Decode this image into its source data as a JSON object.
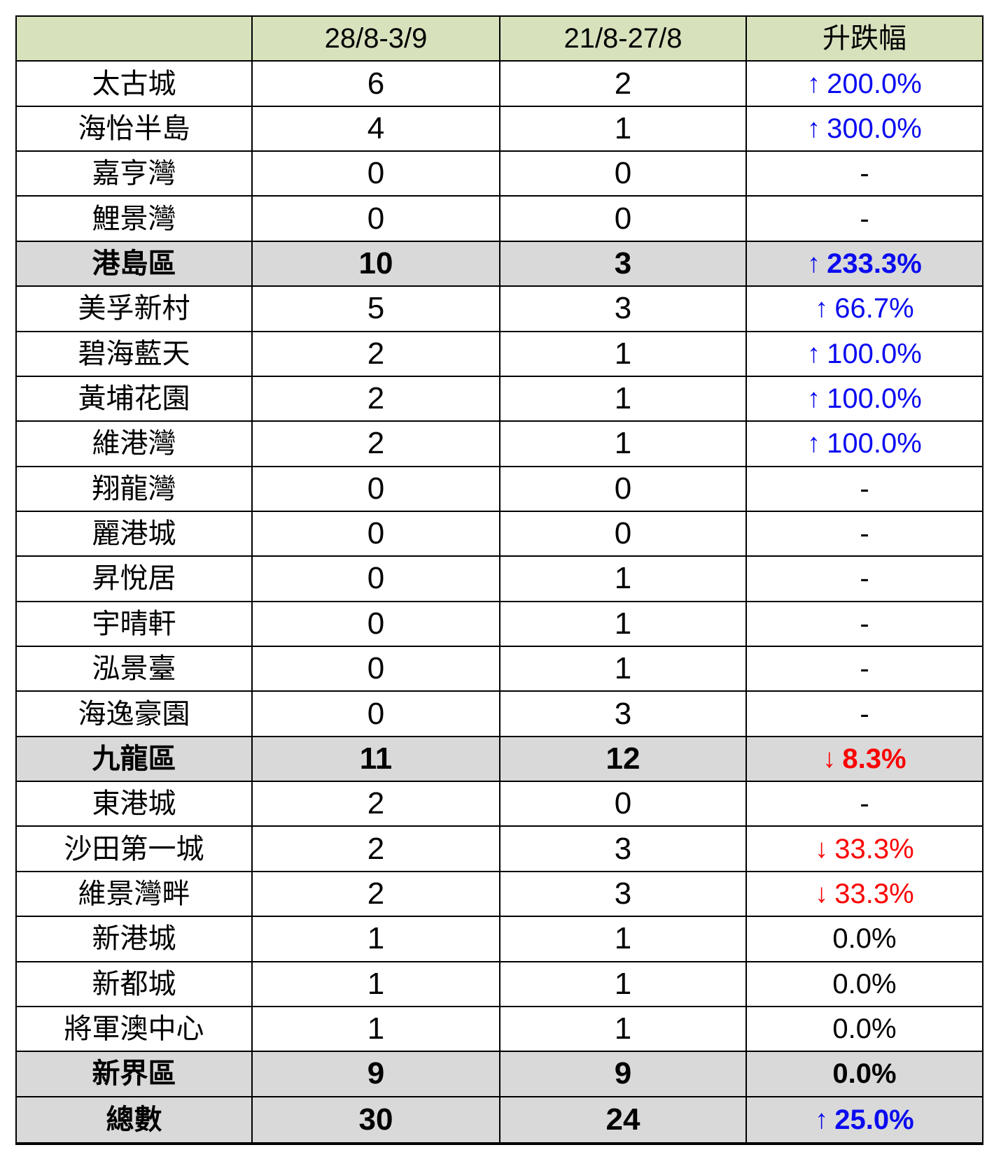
{
  "chart_data": {
    "type": "table",
    "columns": [
      "",
      "28/8-3/9",
      "21/8-27/8",
      "升跌幅"
    ],
    "rows": [
      {
        "name": "太古城",
        "count_28_8_to_3_9": 6,
        "count_21_8_to_27_8": 2,
        "change_arrow": "↑",
        "change_value": "200.0%",
        "direction": "up",
        "is_summary": false
      },
      {
        "name": "海怡半島",
        "count_28_8_to_3_9": 4,
        "count_21_8_to_27_8": 1,
        "change_arrow": "↑",
        "change_value": "300.0%",
        "direction": "up",
        "is_summary": false
      },
      {
        "name": "嘉亨灣",
        "count_28_8_to_3_9": 0,
        "count_21_8_to_27_8": 0,
        "change_arrow": "",
        "change_value": "-",
        "direction": "flat",
        "is_summary": false
      },
      {
        "name": "鯉景灣",
        "count_28_8_to_3_9": 0,
        "count_21_8_to_27_8": 0,
        "change_arrow": "",
        "change_value": "-",
        "direction": "flat",
        "is_summary": false
      },
      {
        "name": "港島區",
        "count_28_8_to_3_9": 10,
        "count_21_8_to_27_8": 3,
        "change_arrow": "↑",
        "change_value": "233.3%",
        "direction": "up",
        "is_summary": true
      },
      {
        "name": "美孚新村",
        "count_28_8_to_3_9": 5,
        "count_21_8_to_27_8": 3,
        "change_arrow": "↑",
        "change_value": "66.7%",
        "direction": "up",
        "is_summary": false
      },
      {
        "name": "碧海藍天",
        "count_28_8_to_3_9": 2,
        "count_21_8_to_27_8": 1,
        "change_arrow": "↑",
        "change_value": "100.0%",
        "direction": "up",
        "is_summary": false
      },
      {
        "name": "黃埔花園",
        "count_28_8_to_3_9": 2,
        "count_21_8_to_27_8": 1,
        "change_arrow": "↑",
        "change_value": "100.0%",
        "direction": "up",
        "is_summary": false
      },
      {
        "name": "維港灣",
        "count_28_8_to_3_9": 2,
        "count_21_8_to_27_8": 1,
        "change_arrow": "↑",
        "change_value": "100.0%",
        "direction": "up",
        "is_summary": false
      },
      {
        "name": "翔龍灣",
        "count_28_8_to_3_9": 0,
        "count_21_8_to_27_8": 0,
        "change_arrow": "",
        "change_value": "-",
        "direction": "flat",
        "is_summary": false
      },
      {
        "name": "麗港城",
        "count_28_8_to_3_9": 0,
        "count_21_8_to_27_8": 0,
        "change_arrow": "",
        "change_value": "-",
        "direction": "flat",
        "is_summary": false
      },
      {
        "name": "昇悅居",
        "count_28_8_to_3_9": 0,
        "count_21_8_to_27_8": 1,
        "change_arrow": "",
        "change_value": "-",
        "direction": "flat",
        "is_summary": false
      },
      {
        "name": "宇晴軒",
        "count_28_8_to_3_9": 0,
        "count_21_8_to_27_8": 1,
        "change_arrow": "",
        "change_value": "-",
        "direction": "flat",
        "is_summary": false
      },
      {
        "name": "泓景臺",
        "count_28_8_to_3_9": 0,
        "count_21_8_to_27_8": 1,
        "change_arrow": "",
        "change_value": "-",
        "direction": "flat",
        "is_summary": false
      },
      {
        "name": "海逸豪園",
        "count_28_8_to_3_9": 0,
        "count_21_8_to_27_8": 3,
        "change_arrow": "",
        "change_value": "-",
        "direction": "flat",
        "is_summary": false
      },
      {
        "name": "九龍區",
        "count_28_8_to_3_9": 11,
        "count_21_8_to_27_8": 12,
        "change_arrow": "↓",
        "change_value": "8.3%",
        "direction": "down",
        "is_summary": true
      },
      {
        "name": "東港城",
        "count_28_8_to_3_9": 2,
        "count_21_8_to_27_8": 0,
        "change_arrow": "",
        "change_value": "-",
        "direction": "flat",
        "is_summary": false
      },
      {
        "name": "沙田第一城",
        "count_28_8_to_3_9": 2,
        "count_21_8_to_27_8": 3,
        "change_arrow": "↓",
        "change_value": "33.3%",
        "direction": "down",
        "is_summary": false
      },
      {
        "name": "維景灣畔",
        "count_28_8_to_3_9": 2,
        "count_21_8_to_27_8": 3,
        "change_arrow": "↓",
        "change_value": "33.3%",
        "direction": "down",
        "is_summary": false
      },
      {
        "name": "新港城",
        "count_28_8_to_3_9": 1,
        "count_21_8_to_27_8": 1,
        "change_arrow": "",
        "change_value": "0.0%",
        "direction": "flat",
        "is_summary": false
      },
      {
        "name": "新都城",
        "count_28_8_to_3_9": 1,
        "count_21_8_to_27_8": 1,
        "change_arrow": "",
        "change_value": "0.0%",
        "direction": "flat",
        "is_summary": false
      },
      {
        "name": "將軍澳中心",
        "count_28_8_to_3_9": 1,
        "count_21_8_to_27_8": 1,
        "change_arrow": "",
        "change_value": "0.0%",
        "direction": "flat",
        "is_summary": false
      },
      {
        "name": "新界區",
        "count_28_8_to_3_9": 9,
        "count_21_8_to_27_8": 9,
        "change_arrow": "",
        "change_value": "0.0%",
        "direction": "flat",
        "is_summary": true
      },
      {
        "name": "總數",
        "count_28_8_to_3_9": 30,
        "count_21_8_to_27_8": 24,
        "change_arrow": "↑",
        "change_value": "25.0%",
        "direction": "up",
        "is_summary": true
      }
    ]
  },
  "colors": {
    "header_bg": "#d7e2bd",
    "summary_bg": "#d9d9d9",
    "up_blue": "#0b0bf0",
    "down_red": "#fb0404",
    "neutral_black": "#000000",
    "border": "#000000"
  }
}
